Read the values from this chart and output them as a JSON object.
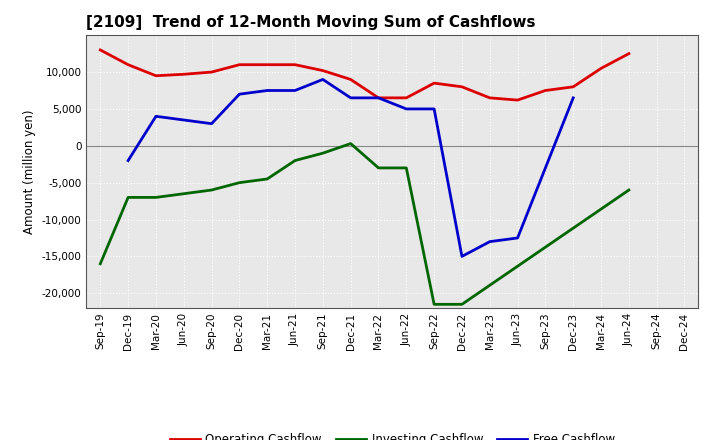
{
  "title": "[2109]  Trend of 12-Month Moving Sum of Cashflows",
  "ylabel": "Amount (million yen)",
  "x_labels": [
    "Sep-19",
    "Dec-19",
    "Mar-20",
    "Jun-20",
    "Sep-20",
    "Dec-20",
    "Mar-21",
    "Jun-21",
    "Sep-21",
    "Dec-21",
    "Mar-22",
    "Jun-22",
    "Sep-22",
    "Dec-22",
    "Mar-23",
    "Jun-23",
    "Sep-23",
    "Dec-23",
    "Mar-24",
    "Jun-24",
    "Sep-24",
    "Dec-24"
  ],
  "operating_x": [
    0,
    1,
    2,
    3,
    4,
    5,
    6,
    7,
    8,
    9,
    10,
    11,
    12,
    13,
    14,
    15,
    16,
    17,
    18,
    19
  ],
  "operating_y": [
    13000,
    11000,
    9500,
    9700,
    10000,
    11000,
    11000,
    11000,
    10200,
    9000,
    6500,
    6500,
    8500,
    8000,
    6500,
    6200,
    7500,
    8000,
    10500,
    12500
  ],
  "investing_x": [
    0,
    1,
    2,
    3,
    4,
    5,
    6,
    7,
    8,
    9,
    10,
    11,
    12,
    13,
    19
  ],
  "investing_y": [
    -16000,
    -7000,
    -7000,
    -6500,
    -6000,
    -5000,
    -4500,
    -2000,
    -1000,
    300,
    -3000,
    -3000,
    -21500,
    -21500,
    -6000
  ],
  "free_x": [
    1,
    2,
    3,
    4,
    5,
    6,
    7,
    8,
    9,
    10,
    11,
    12,
    13,
    14,
    15,
    17
  ],
  "free_y": [
    -2000,
    4000,
    3500,
    3000,
    7000,
    7500,
    7500,
    9000,
    6500,
    6500,
    5000,
    5000,
    -15000,
    -13000,
    -12500,
    6500
  ],
  "operating_color": "#dd0000",
  "investing_color": "#006600",
  "free_color": "#0000cc",
  "background_color": "#ffffff",
  "plot_bg_color": "#e8e8e8",
  "grid_color": "#ffffff",
  "zero_line_color": "#888888",
  "ylim": [
    -22000,
    15000
  ],
  "yticks": [
    -20000,
    -15000,
    -10000,
    -5000,
    0,
    5000,
    10000
  ],
  "linewidth": 2.0,
  "title_fontsize": 11,
  "axis_fontsize": 8.5,
  "tick_fontsize": 7.5,
  "legend_fontsize": 8.5
}
